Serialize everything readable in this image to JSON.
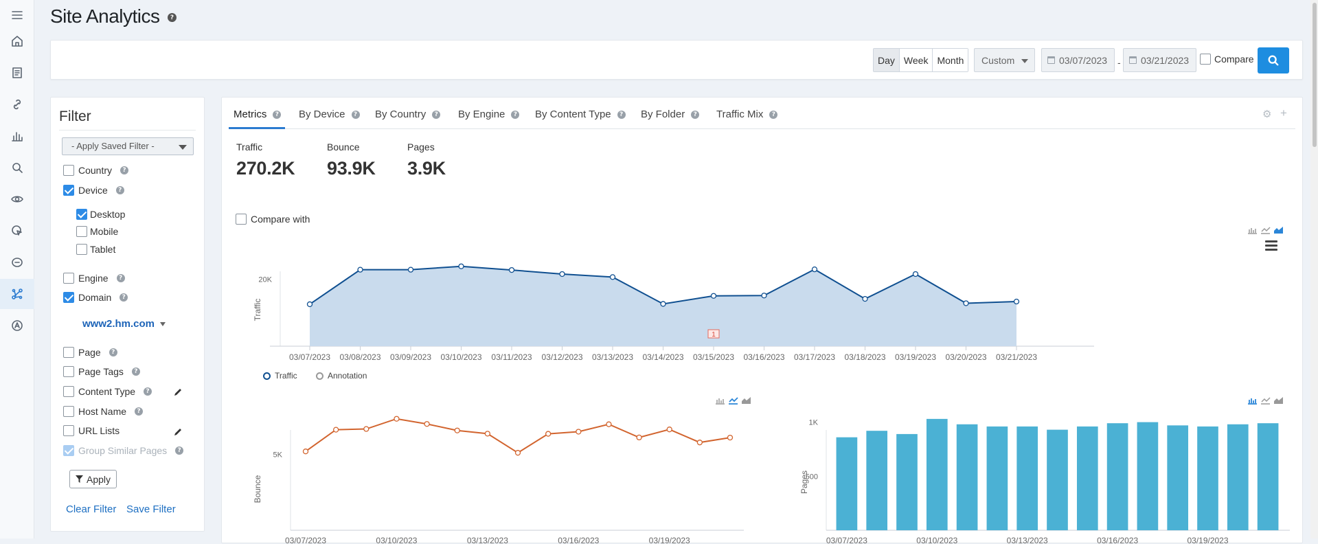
{
  "header": {
    "title": "Site Analytics"
  },
  "nav": {
    "items": [
      "menu-icon",
      "home-icon",
      "document-icon",
      "link-icon",
      "bar-chart-icon",
      "search-icon",
      "eye-icon",
      "cursor-icon",
      "degree-360-icon",
      "network-icon",
      "language-icon"
    ],
    "active_index": 9
  },
  "toolbar": {
    "period_options": [
      "Day",
      "Week",
      "Month"
    ],
    "period_selected": "Day",
    "range_select": "Custom",
    "date_from": "03/07/2023",
    "date_to": "03/21/2023",
    "date_separator": "-",
    "compare_label": "Compare"
  },
  "filter": {
    "title": "Filter",
    "saved_filter_placeholder": "- Apply Saved Filter -",
    "options": {
      "country": "Country",
      "device": "Device",
      "desktop": "Desktop",
      "mobile": "Mobile",
      "tablet": "Tablet",
      "engine": "Engine",
      "domain": "Domain",
      "page": "Page",
      "page_tags": "Page Tags",
      "content_type": "Content Type",
      "host_name": "Host Name",
      "url_lists": "URL Lists",
      "group_similar_pages": "Group Similar Pages"
    },
    "domain_value": "www2.hm.com",
    "apply_label": "Apply",
    "clear_label": "Clear Filter",
    "save_label": "Save Filter"
  },
  "main": {
    "tabs": [
      "Metrics",
      "By Device",
      "By Country",
      "By Engine",
      "By Content Type",
      "By Folder",
      "Traffic Mix"
    ],
    "active_tab": "Metrics",
    "metrics": [
      {
        "label": "Traffic",
        "value": "270.2K"
      },
      {
        "label": "Bounce",
        "value": "93.9K"
      },
      {
        "label": "Pages",
        "value": "3.9K"
      }
    ],
    "compare_with_label": "Compare with",
    "legend": {
      "traffic": "Traffic",
      "annotation": "Annotation"
    },
    "annotation_marker": "1"
  },
  "colors": {
    "traffic_line": "#0f4f90",
    "traffic_fill": "#c9dbed",
    "bounce_line": "#d2642e",
    "pages_bar": "#4bb1d4",
    "accent": "#1e8de0"
  },
  "chart_data": [
    {
      "type": "area",
      "ylabel": "Traffic",
      "x": [
        "03/07/2023",
        "03/08/2023",
        "03/09/2023",
        "03/10/2023",
        "03/11/2023",
        "03/12/2023",
        "03/13/2023",
        "03/14/2023",
        "03/15/2023",
        "03/16/2023",
        "03/17/2023",
        "03/18/2023",
        "03/19/2023",
        "03/20/2023",
        "03/21/2023"
      ],
      "y_ticks": [
        "20K"
      ],
      "ylim": [
        0,
        26000
      ],
      "series": [
        {
          "name": "Traffic",
          "values": [
            12500,
            22800,
            22800,
            23800,
            22700,
            21500,
            20600,
            12600,
            15000,
            15100,
            22900,
            14100,
            21500,
            12800,
            13300
          ]
        }
      ],
      "annotations": [
        {
          "x": "03/15/2023",
          "label": "1"
        }
      ]
    },
    {
      "type": "line",
      "ylabel": "Bounce",
      "x": [
        "03/07/2023",
        "03/08/2023",
        "03/09/2023",
        "03/10/2023",
        "03/11/2023",
        "03/12/2023",
        "03/13/2023",
        "03/14/2023",
        "03/15/2023",
        "03/16/2023",
        "03/17/2023",
        "03/18/2023",
        "03/19/2023",
        "03/20/2023",
        "03/21/2023"
      ],
      "x_ticks": [
        "03/07/2023",
        "03/10/2023",
        "03/13/2023",
        "03/16/2023",
        "03/19/2023"
      ],
      "y_ticks": [
        "5K"
      ],
      "ylim": [
        0,
        7700
      ],
      "series": [
        {
          "name": "Bounce",
          "values": [
            5200,
            6630,
            6680,
            7350,
            7010,
            6580,
            6370,
            5110,
            6360,
            6500,
            6990,
            6120,
            6650,
            5790,
            6110
          ]
        }
      ]
    },
    {
      "type": "bar",
      "ylabel": "Pages",
      "x": [
        "03/07/2023",
        "03/08/2023",
        "03/09/2023",
        "03/10/2023",
        "03/11/2023",
        "03/12/2023",
        "03/13/2023",
        "03/14/2023",
        "03/15/2023",
        "03/16/2023",
        "03/17/2023",
        "03/18/2023",
        "03/19/2023",
        "03/20/2023",
        "03/21/2023"
      ],
      "x_ticks": [
        "03/07/2023",
        "03/10/2023",
        "03/13/2023",
        "03/16/2023",
        "03/19/2023"
      ],
      "y_ticks": [
        "500",
        "1K"
      ],
      "ylim": [
        0,
        1080
      ],
      "values": [
        860,
        920,
        890,
        1030,
        980,
        960,
        960,
        930,
        960,
        990,
        1000,
        970,
        960,
        980,
        990
      ]
    }
  ]
}
